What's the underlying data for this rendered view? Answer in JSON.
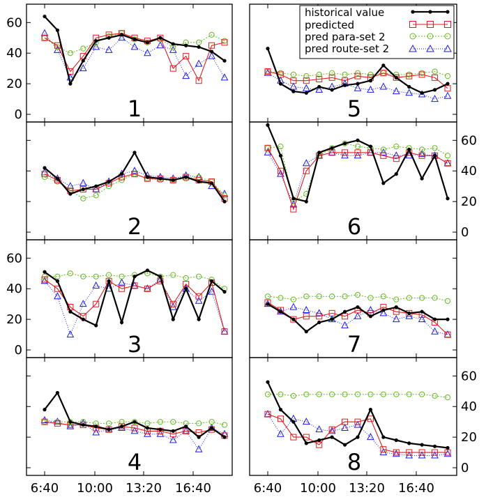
{
  "chart_data": {
    "type": "line",
    "x_ticks": [
      "6:40",
      "10:00",
      "13:20",
      "16:40"
    ],
    "y_ticks": [
      0,
      20,
      40,
      60
    ],
    "ylim": [
      -5,
      72
    ],
    "legend": {
      "placement": "top-right",
      "entries": [
        {
          "key": "historical",
          "label": "historical value"
        },
        {
          "key": "predicted",
          "label": "predicted"
        },
        {
          "key": "para",
          "label": "pred para-set 2"
        },
        {
          "key": "route",
          "label": "pred route-set 2"
        }
      ]
    },
    "colors": {
      "historical": "#000000",
      "predicted": "#e31a1c",
      "para": "#66bb22",
      "route": "#1a1aee"
    },
    "x_points": [
      "5:50",
      "6:40",
      "7:30",
      "8:20",
      "9:10",
      "10:00",
      "10:50",
      "11:40",
      "12:30",
      "13:20",
      "14:10",
      "15:00",
      "15:50",
      "16:40",
      "17:30"
    ],
    "panels": [
      {
        "id": "1",
        "label": "1",
        "side": "left",
        "y_axis_labels": true,
        "series": {
          "historical": [
            64,
            55,
            20,
            35,
            48,
            50,
            52,
            49,
            47,
            50,
            46,
            45,
            44,
            41,
            35
          ],
          "predicted": [
            50,
            45,
            28,
            38,
            50,
            52,
            53,
            50,
            48,
            50,
            30,
            38,
            22,
            45,
            47
          ],
          "para": [
            50,
            44,
            40,
            43,
            47,
            51,
            53,
            49,
            47,
            49,
            44,
            47,
            47,
            52,
            48
          ],
          "route": [
            53,
            42,
            24,
            30,
            44,
            42,
            50,
            44,
            40,
            45,
            42,
            25,
            33,
            38,
            24
          ]
        }
      },
      {
        "id": "2",
        "label": "2",
        "side": "left",
        "y_axis_labels": false,
        "series": {
          "historical": [
            42,
            35,
            25,
            28,
            30,
            33,
            38,
            52,
            36,
            35,
            34,
            36,
            33,
            32,
            20
          ],
          "predicted": [
            38,
            34,
            27,
            28,
            28,
            32,
            36,
            38,
            35,
            35,
            34,
            36,
            34,
            33,
            22
          ],
          "para": [
            36,
            33,
            27,
            22,
            24,
            30,
            34,
            38,
            35,
            34,
            34,
            35,
            36,
            33,
            24
          ],
          "route": [
            39,
            35,
            30,
            32,
            28,
            33,
            38,
            40,
            37,
            36,
            35,
            37,
            36,
            30,
            25
          ]
        }
      },
      {
        "id": "3",
        "label": "3",
        "side": "left",
        "y_axis_labels": true,
        "series": {
          "historical": [
            51,
            45,
            25,
            20,
            16,
            45,
            18,
            48,
            52,
            48,
            20,
            40,
            20,
            45,
            38
          ],
          "predicted": [
            46,
            40,
            28,
            22,
            30,
            45,
            40,
            42,
            40,
            45,
            30,
            43,
            35,
            44,
            12
          ],
          "para": [
            48,
            48,
            50,
            48,
            48,
            49,
            48,
            49,
            50,
            48,
            49,
            47,
            48,
            46,
            40
          ],
          "route": [
            45,
            35,
            10,
            30,
            42,
            40,
            44,
            42,
            40,
            46,
            28,
            40,
            32,
            38,
            12
          ]
        }
      },
      {
        "id": "4",
        "label": "4",
        "side": "left",
        "y_axis_labels": false,
        "series": {
          "historical": [
            38,
            49,
            30,
            28,
            27,
            25,
            27,
            30,
            26,
            25,
            24,
            27,
            20,
            26,
            20
          ],
          "predicted": [
            30,
            29,
            28,
            28,
            26,
            25,
            27,
            26,
            24,
            24,
            22,
            24,
            23,
            25,
            21
          ],
          "para": [
            30,
            30,
            30,
            30,
            29,
            29,
            30,
            30,
            29,
            30,
            30,
            29,
            29,
            30,
            28
          ],
          "route": [
            31,
            30,
            27,
            29,
            23,
            25,
            26,
            24,
            22,
            22,
            18,
            24,
            12,
            26,
            22
          ]
        }
      },
      {
        "id": "5",
        "label": "5",
        "side": "right",
        "y_axis_labels": false,
        "series": {
          "historical": [
            43,
            20,
            15,
            14,
            18,
            16,
            19,
            20,
            22,
            32,
            24,
            18,
            14,
            16,
            20
          ],
          "predicted": [
            28,
            26,
            22,
            22,
            23,
            24,
            22,
            25,
            24,
            27,
            24,
            25,
            26,
            24,
            17
          ],
          "para": [
            28,
            27,
            26,
            25,
            26,
            27,
            26,
            27,
            26,
            27,
            26,
            26,
            27,
            28,
            25
          ],
          "route": [
            27,
            22,
            18,
            17,
            16,
            18,
            20,
            17,
            16,
            18,
            15,
            14,
            13,
            10,
            12
          ]
        }
      },
      {
        "id": "6",
        "label": "6",
        "side": "right",
        "y_axis_labels": true,
        "series": {
          "historical": [
            70,
            50,
            22,
            20,
            52,
            55,
            58,
            60,
            56,
            32,
            38,
            54,
            35,
            50,
            22
          ],
          "predicted": [
            55,
            40,
            15,
            40,
            50,
            52,
            52,
            52,
            52,
            50,
            48,
            52,
            50,
            50,
            45
          ],
          "para": [
            55,
            56,
            20,
            25,
            50,
            55,
            58,
            56,
            55,
            54,
            56,
            55,
            54,
            55,
            50
          ],
          "route": [
            52,
            38,
            18,
            45,
            50,
            52,
            50,
            50,
            52,
            52,
            50,
            50,
            51,
            50,
            45
          ]
        }
      },
      {
        "id": "7",
        "label": "7",
        "side": "right",
        "y_axis_labels": false,
        "series": {
          "historical": [
            30,
            25,
            20,
            12,
            18,
            20,
            25,
            28,
            22,
            26,
            28,
            24,
            25,
            20,
            20
          ],
          "predicted": [
            31,
            26,
            20,
            22,
            22,
            24,
            22,
            26,
            24,
            28,
            25,
            24,
            23,
            18,
            10
          ],
          "para": [
            35,
            34,
            33,
            35,
            35,
            35,
            35,
            36,
            34,
            35,
            33,
            34,
            34,
            34,
            32
          ],
          "route": [
            30,
            25,
            28,
            26,
            24,
            20,
            16,
            22,
            26,
            24,
            20,
            22,
            20,
            12,
            10
          ]
        }
      },
      {
        "id": "8",
        "label": "8",
        "side": "right",
        "y_axis_labels": true,
        "series": {
          "historical": [
            56,
            38,
            30,
            16,
            18,
            20,
            15,
            20,
            38,
            20,
            18,
            16,
            15,
            14,
            13
          ],
          "predicted": [
            35,
            32,
            20,
            20,
            15,
            25,
            30,
            30,
            32,
            12,
            10,
            10,
            10,
            10,
            10
          ],
          "para": [
            48,
            48,
            47,
            48,
            48,
            48,
            48,
            48,
            48,
            48,
            48,
            48,
            48,
            47,
            46
          ],
          "route": [
            35,
            22,
            32,
            30,
            25,
            24,
            26,
            28,
            20,
            10,
            9,
            8,
            8,
            8,
            9
          ]
        }
      }
    ]
  }
}
